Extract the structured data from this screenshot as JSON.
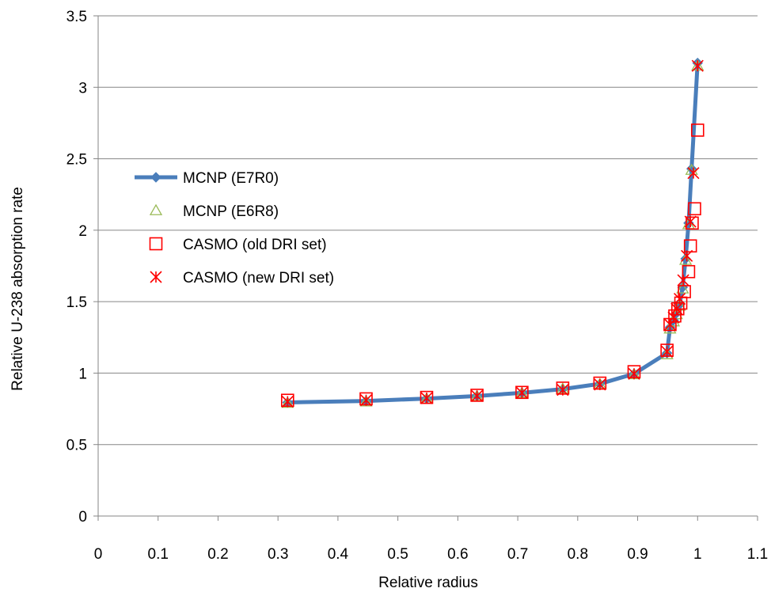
{
  "chart_data": {
    "type": "line",
    "title": "",
    "xlabel": "Relative radius",
    "ylabel": "Relative U-238 absorption rate",
    "xlim": [
      0,
      1.1
    ],
    "ylim": [
      0,
      3.5
    ],
    "x_ticks": [
      "0",
      "0.1",
      "0.2",
      "0.3",
      "0.4",
      "0.5",
      "0.6",
      "0.7",
      "0.8",
      "0.9",
      "1",
      "1.1"
    ],
    "y_ticks": [
      "0",
      "0.5",
      "1",
      "1.5",
      "2",
      "2.5",
      "3",
      "3.5"
    ],
    "grid": "horizontal",
    "legend_position": "left",
    "series": [
      {
        "name": "MCNP (E7R0)",
        "marker": "diamond",
        "line": true,
        "color": "#4a7ebb",
        "points": [
          [
            0.316,
            0.795
          ],
          [
            0.447,
            0.805
          ],
          [
            0.548,
            0.822
          ],
          [
            0.632,
            0.84
          ],
          [
            0.707,
            0.862
          ],
          [
            0.775,
            0.888
          ],
          [
            0.837,
            0.925
          ],
          [
            0.894,
            0.995
          ],
          [
            0.949,
            1.14
          ],
          [
            0.954,
            1.32
          ],
          [
            0.96,
            1.37
          ],
          [
            0.965,
            1.42
          ],
          [
            0.97,
            1.48
          ],
          [
            0.975,
            1.6
          ],
          [
            0.98,
            1.8
          ],
          [
            0.985,
            2.05
          ],
          [
            0.99,
            2.43
          ],
          [
            1.0,
            3.17
          ]
        ]
      },
      {
        "name": "MCNP (E6R8)",
        "marker": "triangle",
        "line": false,
        "color": "#9bbb59",
        "points": [
          [
            0.316,
            0.79
          ],
          [
            0.447,
            0.8
          ],
          [
            0.548,
            0.82
          ],
          [
            0.632,
            0.838
          ],
          [
            0.707,
            0.86
          ],
          [
            0.775,
            0.89
          ],
          [
            0.837,
            0.922
          ],
          [
            0.894,
            0.99
          ],
          [
            0.949,
            1.13
          ],
          [
            0.954,
            1.31
          ],
          [
            0.96,
            1.36
          ],
          [
            0.965,
            1.41
          ],
          [
            0.97,
            1.47
          ],
          [
            0.975,
            1.59
          ],
          [
            0.98,
            1.79
          ],
          [
            0.985,
            2.04
          ],
          [
            0.99,
            2.42
          ],
          [
            1.0,
            3.15
          ]
        ]
      },
      {
        "name": "CASMO (old DRI set)",
        "marker": "square",
        "line": false,
        "color": "#ff0000",
        "points": [
          [
            0.316,
            0.81
          ],
          [
            0.447,
            0.82
          ],
          [
            0.548,
            0.83
          ],
          [
            0.632,
            0.845
          ],
          [
            0.707,
            0.865
          ],
          [
            0.775,
            0.895
          ],
          [
            0.837,
            0.93
          ],
          [
            0.894,
            1.01
          ],
          [
            0.949,
            1.16
          ],
          [
            0.954,
            1.34
          ],
          [
            0.962,
            1.4
          ],
          [
            0.967,
            1.45
          ],
          [
            0.972,
            1.49
          ],
          [
            0.978,
            1.57
          ],
          [
            0.985,
            1.71
          ],
          [
            0.988,
            1.89
          ],
          [
            0.991,
            2.05
          ],
          [
            0.995,
            2.15
          ],
          [
            1.0,
            2.7
          ]
        ]
      },
      {
        "name": "CASMO (new DRI set)",
        "marker": "asterisk",
        "line": false,
        "color": "#ff0000",
        "points": [
          [
            0.316,
            0.8
          ],
          [
            0.447,
            0.81
          ],
          [
            0.548,
            0.825
          ],
          [
            0.632,
            0.84
          ],
          [
            0.707,
            0.862
          ],
          [
            0.775,
            0.882
          ],
          [
            0.837,
            0.92
          ],
          [
            0.894,
            0.995
          ],
          [
            0.949,
            1.15
          ],
          [
            0.954,
            1.34
          ],
          [
            0.96,
            1.39
          ],
          [
            0.965,
            1.45
          ],
          [
            0.97,
            1.52
          ],
          [
            0.976,
            1.65
          ],
          [
            0.982,
            1.82
          ],
          [
            0.988,
            2.06
          ],
          [
            0.993,
            2.4
          ],
          [
            1.0,
            3.15
          ]
        ]
      }
    ]
  }
}
